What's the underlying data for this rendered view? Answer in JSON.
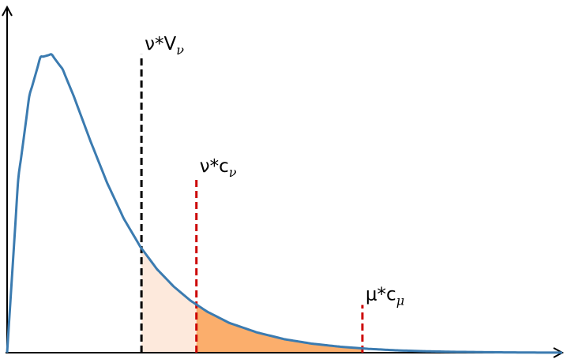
{
  "chart_data": {
    "type": "area",
    "title": "",
    "xlabel": "",
    "ylabel": "",
    "grid": false,
    "legend": "none",
    "axes": {
      "arrowheads": true,
      "ticks": false
    },
    "xlim": [
      0,
      10
    ],
    "ylim": [
      0,
      1.05
    ],
    "curve": {
      "name": "",
      "shape": "right-skewed density",
      "color": "#3b7bb0",
      "x": [
        0,
        0.2,
        0.4,
        0.6,
        0.8,
        1.0,
        1.2,
        1.5,
        1.8,
        2.1,
        2.4,
        2.7,
        3.0,
        3.3,
        3.6,
        4.0,
        4.5,
        5.0,
        5.5,
        6.0,
        6.5,
        7.0,
        7.5,
        8.0,
        8.5,
        9.0,
        9.5,
        10.0
      ],
      "y": [
        0,
        0.58,
        0.86,
        0.99,
        1.0,
        0.95,
        0.86,
        0.71,
        0.57,
        0.45,
        0.355,
        0.28,
        0.222,
        0.175,
        0.138,
        0.1,
        0.068,
        0.045,
        0.03,
        0.02,
        0.013,
        0.008,
        0.005,
        0.003,
        0.002,
        0.001,
        0.0005,
        0.0002
      ]
    },
    "shaded_regions": [
      {
        "from": 2.42,
        "to": 3.41,
        "color": "#fde9dc"
      },
      {
        "from": 3.41,
        "to": 6.4,
        "color": "#fbae6c"
      }
    ],
    "markers": [
      {
        "x": 2.42,
        "y_top": 1.0,
        "color": "#000000",
        "label_main": "ν*V",
        "label_sub": "ν"
      },
      {
        "x": 3.41,
        "y_top": 0.59,
        "color": "#cc0000",
        "label_main": "ν*c",
        "label_sub": "ν"
      },
      {
        "x": 6.4,
        "y_top": 0.16,
        "color": "#cc0000",
        "label_main": "μ*c",
        "label_sub": "μ"
      }
    ]
  }
}
